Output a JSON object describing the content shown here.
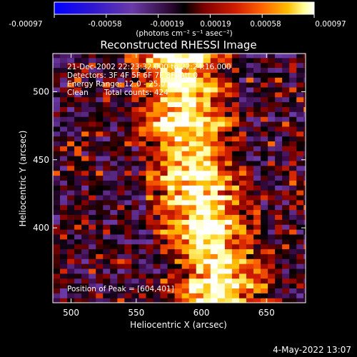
{
  "colorbar": {
    "ticks": [
      "-0.00097",
      "-0.00058",
      "-0.00019",
      "0.00019",
      "0.00058",
      "0.00097"
    ],
    "units": "(photons cm⁻² s⁻¹ asec⁻²)"
  },
  "title": "Reconstructed RHESSI Image",
  "info": {
    "time": "21-Dec-2002 22:23:32.000 to 22:24:16.000",
    "detectors": "Detectors: 3F 4F 5F 6F 7F 8F, Att 0",
    "energy": "Energy Range: 12.0 - 25.0 keV",
    "method": "Clean",
    "counts": "Total counts: 424"
  },
  "peak_label": "Position of Peak = [604,401]",
  "timestamp": "4-May-2022 13:07",
  "chart_data": {
    "type": "heatmap",
    "title": "Reconstructed RHESSI Image",
    "xlabel": "Heliocentric X (arcsec)",
    "ylabel": "Heliocentric Y (arcsec)",
    "xlim": [
      486,
      680
    ],
    "ylim": [
      345,
      528
    ],
    "x_ticks": [
      500,
      550,
      600,
      650
    ],
    "y_ticks": [
      400,
      450,
      500
    ],
    "x_tick_labels": [
      "500",
      "550",
      "600",
      "650"
    ],
    "y_tick_labels": [
      "400",
      "450",
      "500"
    ],
    "color_range": [
      -0.00097,
      0.00097
    ],
    "peak": [
      604,
      401
    ],
    "colormap": [
      "#0000ff",
      "#3c1ec8",
      "#6a3aa8",
      "#3c0a46",
      "#000000",
      "#800000",
      "#d21e00",
      "#ff6400",
      "#ffbe00",
      "#ffff96",
      "#ffffff"
    ],
    "ridge": [
      {
        "y": 350,
        "x": 608
      },
      {
        "y": 370,
        "x": 612
      },
      {
        "y": 395,
        "x": 600
      },
      {
        "y": 420,
        "x": 596
      },
      {
        "y": 445,
        "x": 592
      },
      {
        "y": 470,
        "x": 585
      },
      {
        "y": 495,
        "x": 584
      },
      {
        "y": 520,
        "x": 580
      }
    ]
  }
}
